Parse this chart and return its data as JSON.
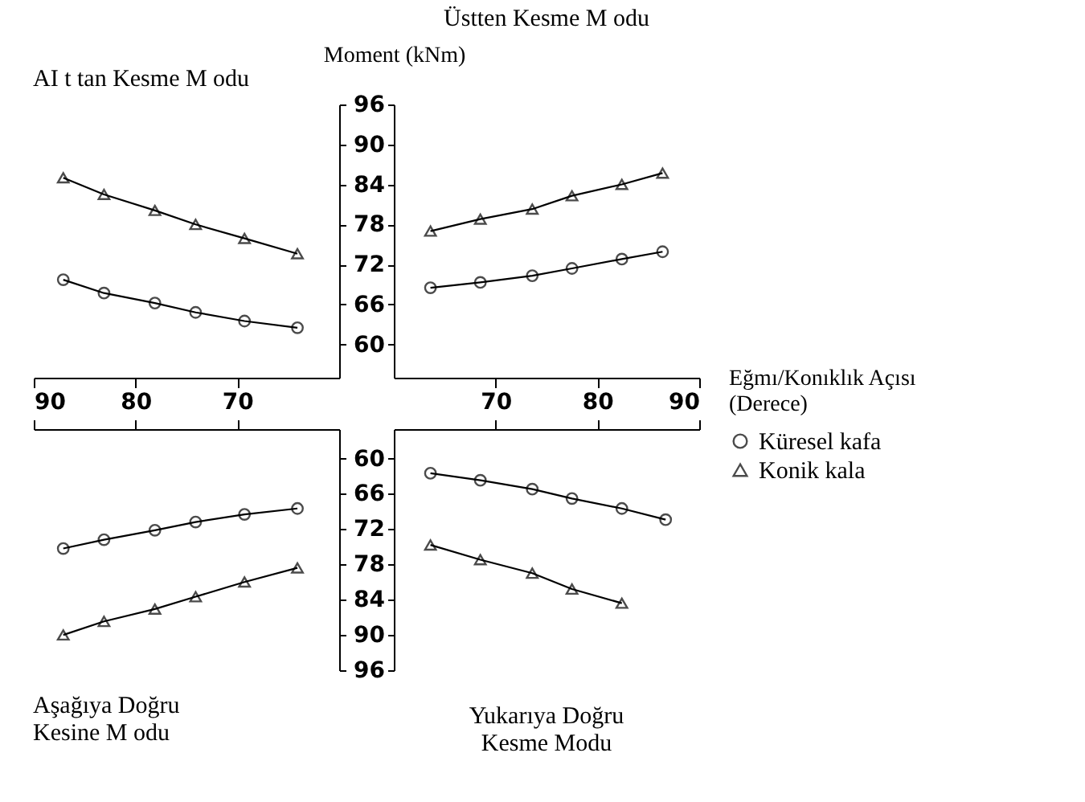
{
  "chart_data": [
    {
      "type": "line",
      "title": "AI t tan Kesme M odu",
      "x": [
        87.1,
        83.1,
        78.1,
        74.1,
        69.3,
        64.1
      ],
      "xlim": [
        90,
        60
      ],
      "xticks": [
        90,
        80,
        70
      ],
      "ylim": [
        55,
        96
      ],
      "yticks": [
        60,
        66,
        72,
        78,
        84,
        90,
        96
      ],
      "tick_labels": "x",
      "series": [
        {
          "color": "#000000",
          "marker": "circle",
          "values": [
            69.7,
            67.7,
            66.2,
            64.8,
            63.5,
            62.5
          ]
        },
        {
          "color": "#000000",
          "marker": "triangle",
          "values": [
            85,
            82.5,
            80.1,
            78,
            75.9,
            73.6
          ]
        }
      ]
    },
    {
      "type": "line",
      "title": "Üstten Kesme M odu",
      "xlabel": "Eğmı/Konıklık Açısı\n(Derece)",
      "ylabel": "Moment (kNm)",
      "x": [
        63.6,
        68.5,
        73.6,
        77.5,
        82.4,
        86.4
      ],
      "xlim": [
        60,
        90
      ],
      "xticks": [
        70,
        80,
        90
      ],
      "ylim": [
        55,
        96
      ],
      "yticks": [
        60,
        66,
        72,
        78,
        84,
        90,
        96
      ],
      "series": [
        {
          "color": "#000000",
          "marker": "circle",
          "values": [
            68.5,
            69.3,
            70.3,
            71.4,
            72.8,
            73.9
          ]
        },
        {
          "color": "#000000",
          "marker": "triangle",
          "values": [
            77,
            78.8,
            80.3,
            82.3,
            84,
            85.7
          ]
        }
      ]
    },
    {
      "type": "line",
      "title": "Aşağıya Doğru\nKesine M odu",
      "x": [
        87.1,
        83.1,
        78.1,
        74.1,
        69.3,
        64.1
      ],
      "xlim": [
        90,
        60
      ],
      "xticks": [
        90,
        80,
        70
      ],
      "ylim": [
        96,
        55
      ],
      "yticks": [
        60,
        66,
        72,
        78,
        84,
        90,
        96
      ],
      "tick_labels": false,
      "series": [
        {
          "color": "#000000",
          "marker": "circle",
          "values": [
            75.3,
            73.8,
            72.2,
            70.8,
            69.5,
            68.5
          ]
        },
        {
          "color": "#000000",
          "marker": "triangle",
          "values": [
            90,
            87.7,
            85.6,
            83.5,
            81,
            78.6
          ]
        }
      ]
    },
    {
      "type": "line",
      "title": "Yukarıya Doğru\nKesme Modu",
      "x": [
        63.6,
        68.5,
        73.6,
        77.5,
        82.4,
        86.7
      ],
      "xlim": [
        60,
        90
      ],
      "xticks": [
        70,
        80,
        90
      ],
      "ylim": [
        96,
        55
      ],
      "yticks": [
        60,
        66,
        72,
        78,
        84,
        90,
        96
      ],
      "tick_labels": "y",
      "legend": "right",
      "series": [
        {
          "name": "Küresel kafa",
          "color": "#000000",
          "marker": "circle",
          "values": [
            62.5,
            63.7,
            65.2,
            66.8,
            68.5,
            70.4
          ]
        },
        {
          "name": "Konik kala",
          "color": "#000000",
          "marker": "triangle",
          "x": [
            63.6,
            68.5,
            73.6,
            77.5,
            82.4
          ],
          "values": [
            74.7,
            77.2,
            79.5,
            82.2,
            84.6
          ]
        }
      ]
    }
  ]
}
